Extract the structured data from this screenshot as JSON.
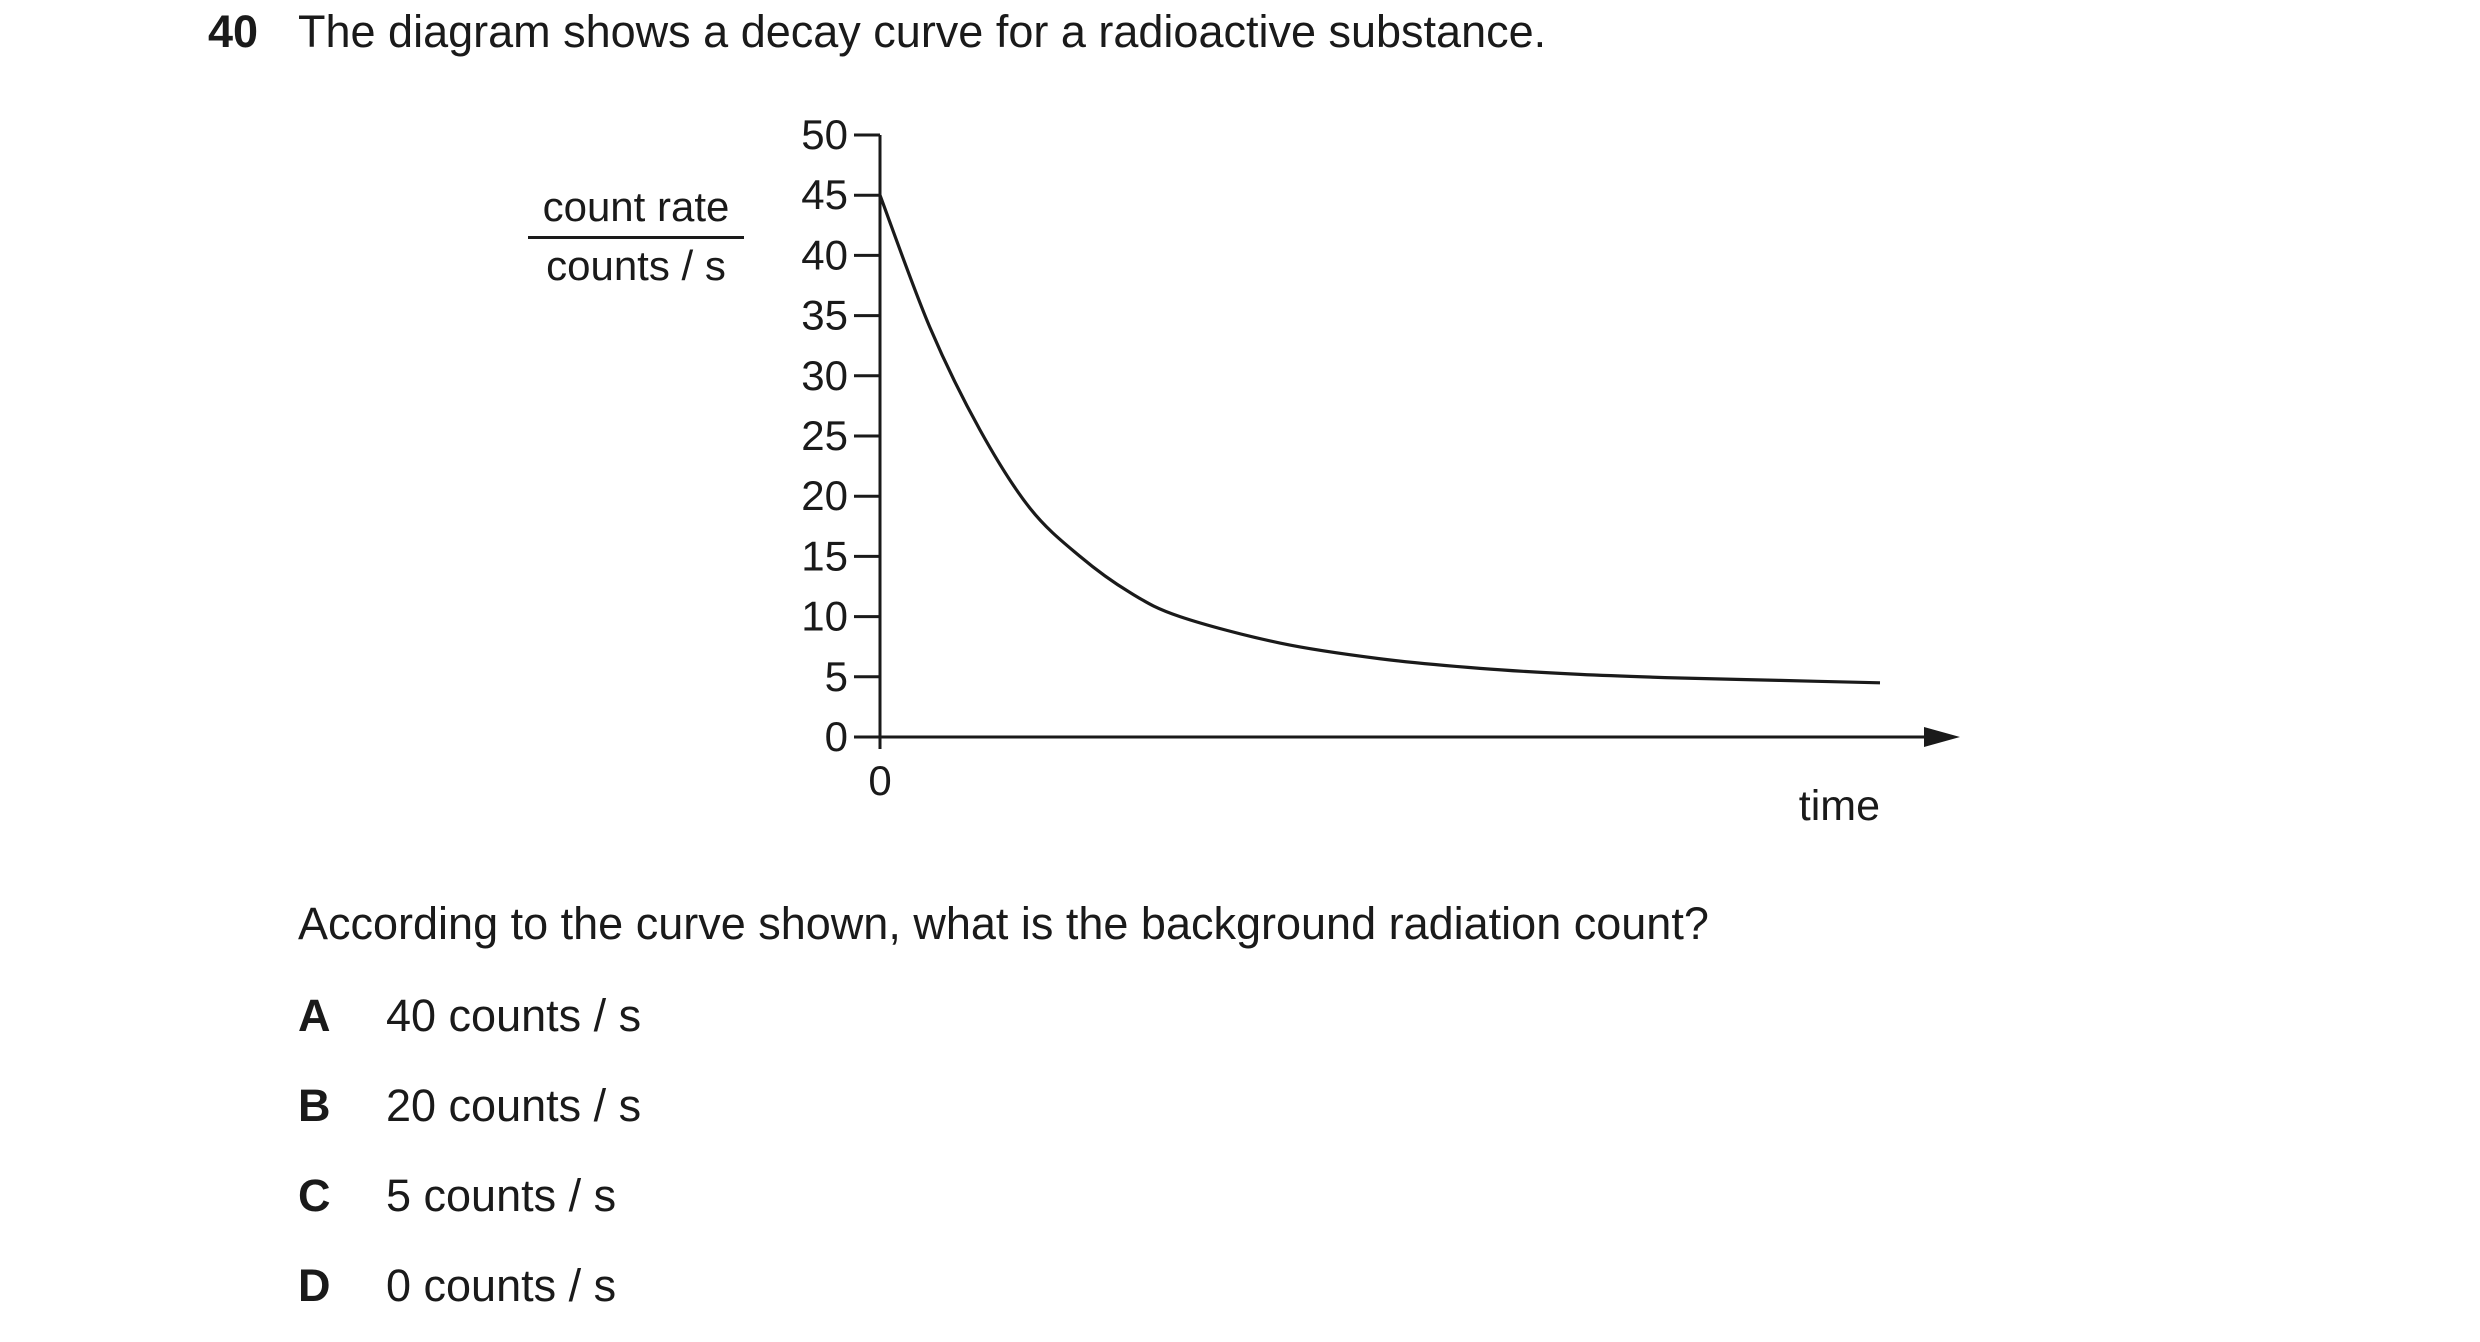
{
  "question": {
    "number": "40",
    "intro": "The diagram shows a decay curve for a radioactive substance.",
    "prompt": "According to the curve shown, what is the background radiation count?",
    "options": [
      {
        "letter": "A",
        "text": "40 counts / s"
      },
      {
        "letter": "B",
        "text": "20 counts / s"
      },
      {
        "letter": "C",
        "text": "5 counts / s"
      },
      {
        "letter": "D",
        "text": "0 counts / s"
      }
    ]
  },
  "chart_data": {
    "type": "line",
    "ylabel_top": "count rate",
    "ylabel_bottom": "counts / s",
    "xlabel": "time",
    "x_origin_label": "0",
    "ylim": [
      0,
      50
    ],
    "yticks": [
      "0",
      "5",
      "10",
      "15",
      "20",
      "25",
      "30",
      "35",
      "40",
      "45",
      "50"
    ],
    "series": [
      {
        "x": [
          0,
          0.05,
          0.1,
          0.15,
          0.2,
          0.25,
          0.3,
          0.4,
          0.5,
          0.6,
          0.7,
          0.8,
          0.9,
          1.0
        ],
        "values": [
          45,
          34,
          25.5,
          19,
          15,
          12,
          10,
          7.8,
          6.5,
          5.7,
          5.2,
          4.9,
          4.7,
          4.5
        ]
      }
    ],
    "grid": false
  }
}
